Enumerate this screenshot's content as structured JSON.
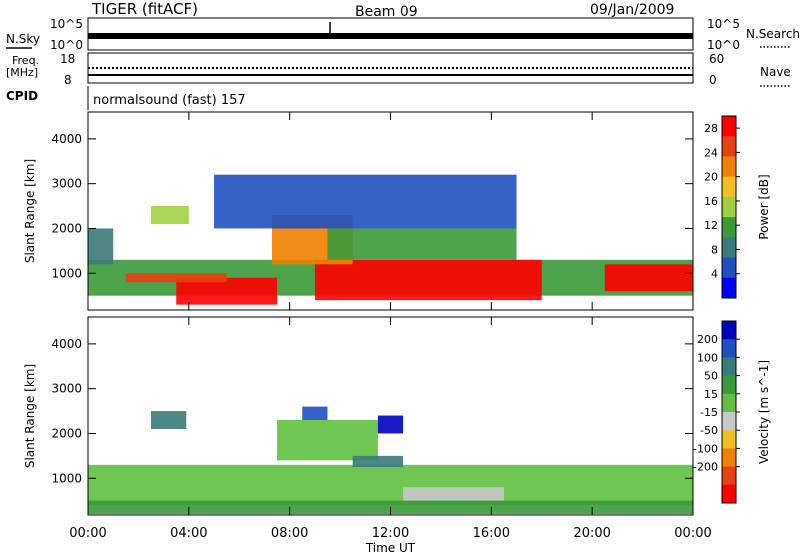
{
  "header": {
    "radar": "TIGER (fitACF)",
    "beam": "Beam 09",
    "date": "09/Jan/2009"
  },
  "strips": {
    "nsky_label": "N.Sky",
    "nsky_ticks": [
      "10^5",
      "10^0"
    ],
    "nsearch_label": "N.Search",
    "nsearch_ticks": [
      "10^5",
      "10^0"
    ],
    "freq_label_line1": "Freq.",
    "freq_label_line2": "[MHz]",
    "freq_ticks": [
      "18",
      "8"
    ],
    "nave_label": "Nave",
    "nave_ticks": [
      "60",
      "0"
    ],
    "cpid_label": "CPID",
    "cpid_text": "normalsound (fast) 157"
  },
  "colors": {
    "power": [
      "#0000ff",
      "#2050c0",
      "#3c7a7a",
      "#3a9a3a",
      "#a0d040",
      "#f0c020",
      "#f08000",
      "#e84010",
      "#ff0000"
    ],
    "velocity": [
      "#0000c0",
      "#2050c0",
      "#3c7a7a",
      "#3a9a3a",
      "#60c040",
      "#c8c8c8",
      "#f0c020",
      "#f08000",
      "#e84010",
      "#ff0000"
    ]
  },
  "chart_data": [
    {
      "type": "heatmap",
      "title": "",
      "xlabel": "Time UT",
      "ylabel": "Slant Range [km]",
      "xticks": [
        "00:00",
        "04:00",
        "08:00",
        "12:00",
        "16:00",
        "20:00",
        "00:00"
      ],
      "yticks": [
        1000,
        2000,
        3000,
        4000
      ],
      "ylim": [
        180,
        4600
      ],
      "colorbar": {
        "label": "Power [dB]",
        "ticks": [
          4,
          8,
          12,
          16,
          20,
          24,
          28
        ],
        "range": [
          0,
          30
        ]
      },
      "regions": [
        {
          "t0": 0.0,
          "t1": 24.0,
          "r0": 500,
          "r1": 1300,
          "level": 12
        },
        {
          "t0": 3.5,
          "t1": 7.5,
          "r0": 300,
          "r1": 900,
          "level": 28
        },
        {
          "t0": 1.5,
          "t1": 5.5,
          "r0": 800,
          "r1": 1000,
          "level": 24
        },
        {
          "t0": 9.0,
          "t1": 18.0,
          "r0": 400,
          "r1": 1300,
          "level": 28
        },
        {
          "t0": 7.3,
          "t1": 10.5,
          "r0": 1200,
          "r1": 2300,
          "level": 20
        },
        {
          "t0": 2.5,
          "t1": 4.0,
          "r0": 2100,
          "r1": 2500,
          "level": 16
        },
        {
          "t0": 20.5,
          "t1": 24.0,
          "r0": 600,
          "r1": 1200,
          "level": 28
        },
        {
          "t0": 9.5,
          "t1": 17.0,
          "r0": 1300,
          "r1": 2000,
          "level": 12
        },
        {
          "t0": 0.0,
          "t1": 1.0,
          "r0": 1200,
          "r1": 2000,
          "level": 8
        },
        {
          "t0": 5.0,
          "t1": 17.0,
          "r0": 2000,
          "r1": 3200,
          "level": 4
        }
      ]
    },
    {
      "type": "heatmap",
      "title": "",
      "xlabel": "Time UT",
      "ylabel": "Slant Range [km]",
      "xticks": [
        "00:00",
        "04:00",
        "08:00",
        "12:00",
        "16:00",
        "20:00",
        "00:00"
      ],
      "yticks": [
        1000,
        2000,
        3000,
        4000
      ],
      "ylim": [
        180,
        4600
      ],
      "colorbar": {
        "label": "Velocity [m s^-1]",
        "ticks": [
          200,
          100,
          50,
          15,
          -15,
          -50,
          -100,
          -200
        ]
      },
      "regions": [
        {
          "t0": 0.0,
          "t1": 24.0,
          "r0": 400,
          "r1": 1300,
          "level": 0
        },
        {
          "t0": 2.5,
          "t1": 3.9,
          "r0": 2100,
          "r1": 2500,
          "level": 60
        },
        {
          "t0": 7.5,
          "t1": 11.5,
          "r0": 1400,
          "r1": 2300,
          "level": 0
        },
        {
          "t0": 10.5,
          "t1": 12.5,
          "r0": 1250,
          "r1": 1500,
          "level": 60
        },
        {
          "t0": 8.5,
          "t1": 9.5,
          "r0": 2300,
          "r1": 2600,
          "level": 150
        },
        {
          "t0": 11.5,
          "t1": 12.5,
          "r0": 2000,
          "r1": 2400,
          "level": 200
        },
        {
          "t0": 12.5,
          "t1": 16.5,
          "r0": 500,
          "r1": 800,
          "level": -30
        },
        {
          "t0": 0.0,
          "t1": 24.0,
          "r0": 200,
          "r1": 500,
          "level": 40
        }
      ]
    }
  ]
}
